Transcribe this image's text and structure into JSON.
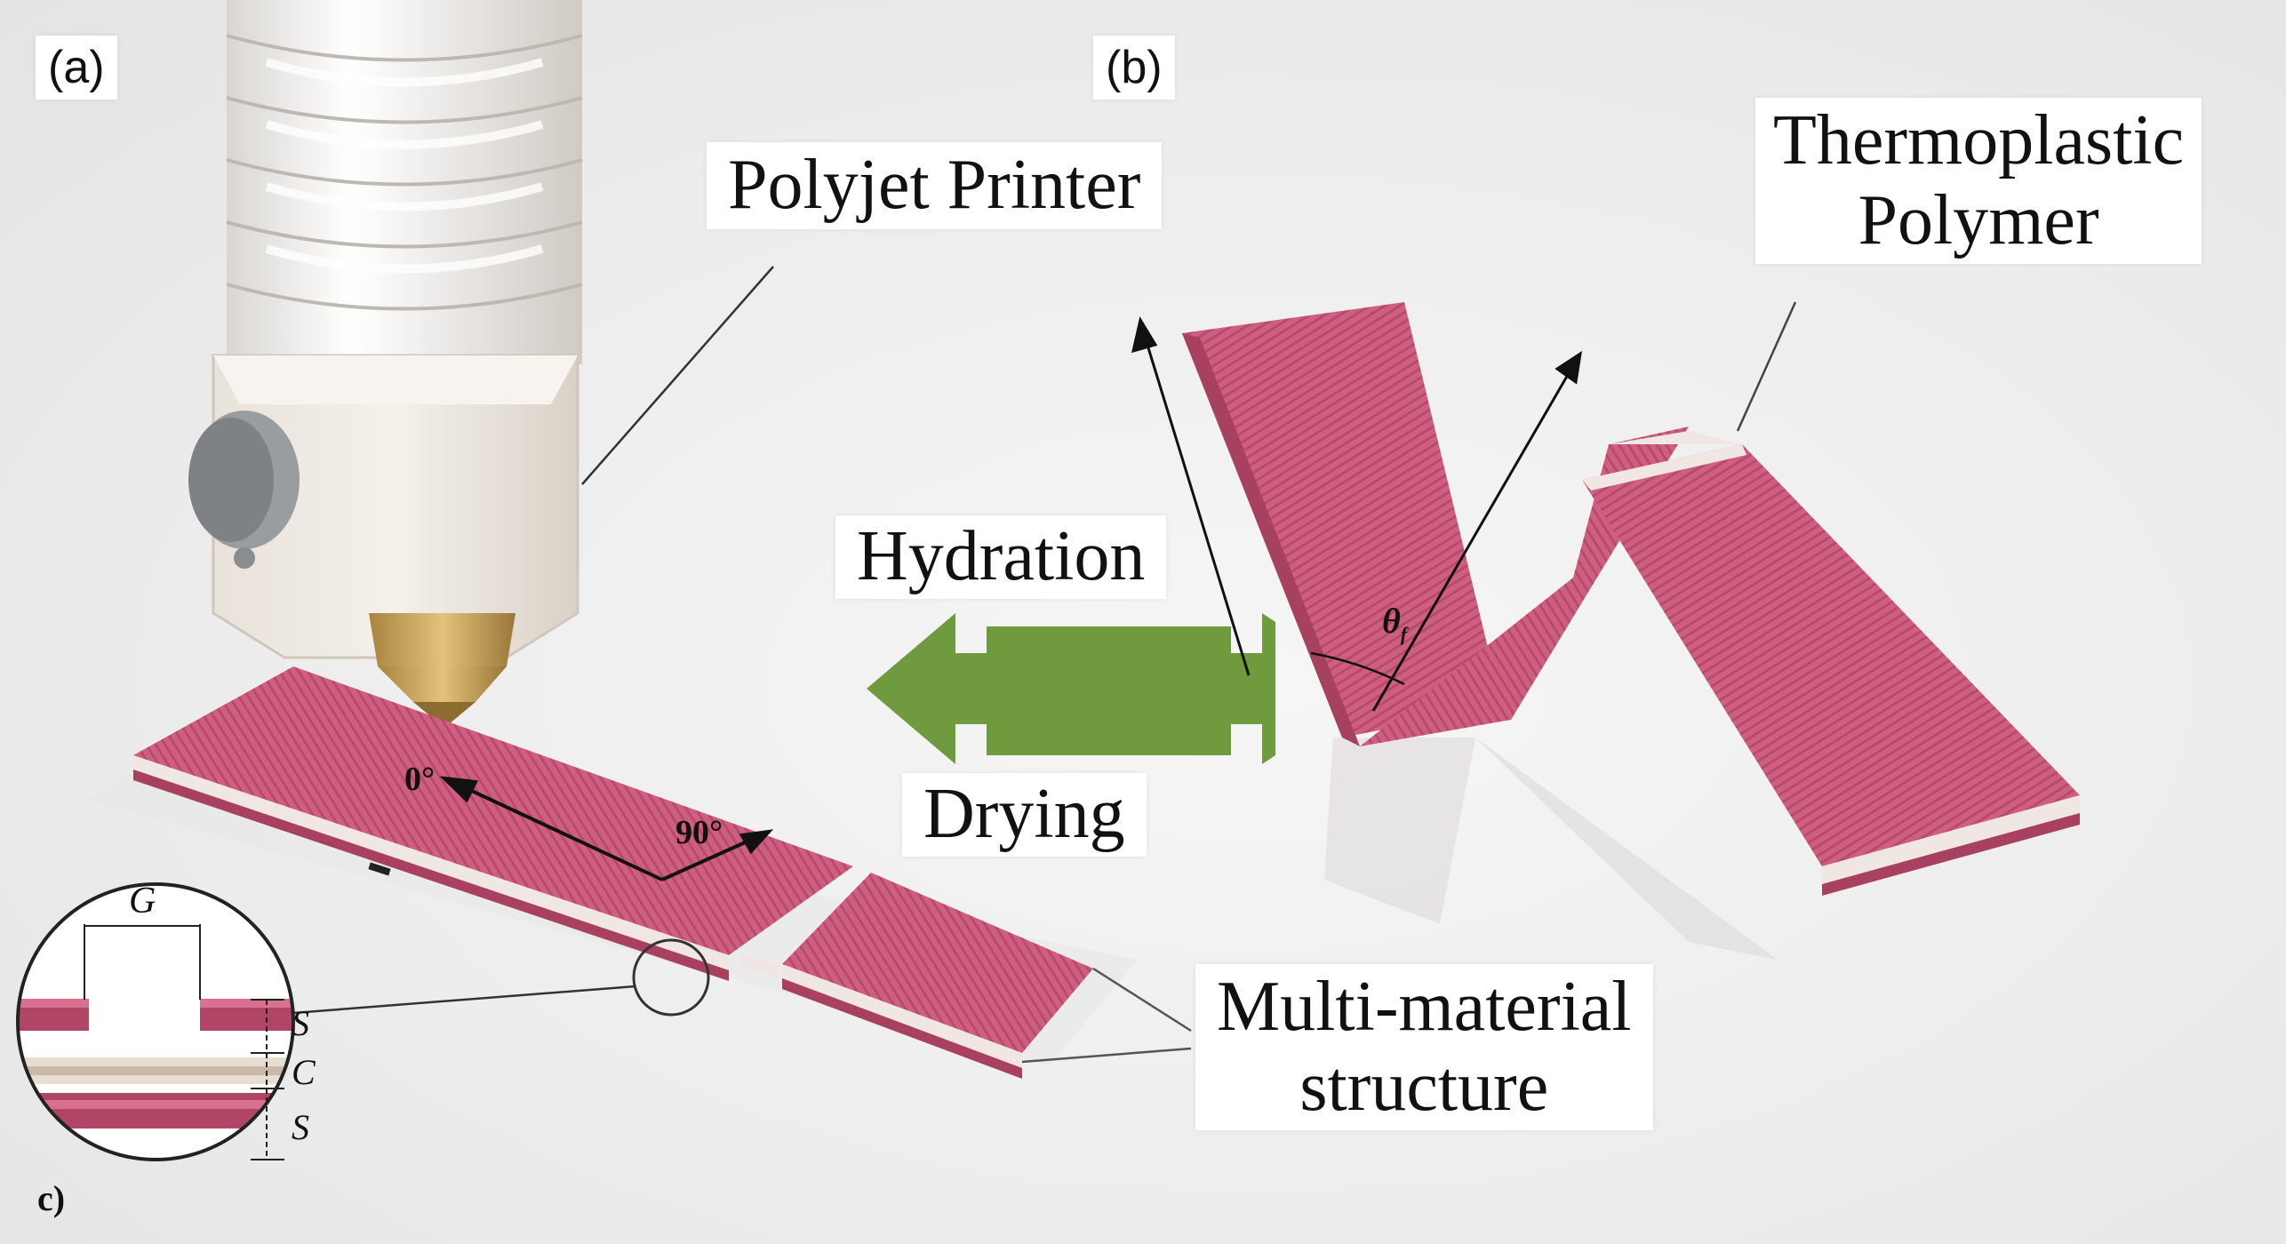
{
  "panels": {
    "a": "(a)",
    "b": "(b)",
    "c": "c)"
  },
  "labels": {
    "printer": "Polyjet Printer",
    "thermo_line1": "Thermoplastic",
    "thermo_line2": "Polymer",
    "hydration": "Hydration",
    "drying": "Drying",
    "multi_line1": "Multi-material",
    "multi_line2": "structure"
  },
  "annotations": {
    "angle_0": "0°",
    "angle_90": "90°",
    "theta": "θ",
    "theta_sub": "f",
    "gap": "G",
    "shell_top": "S",
    "core": "C",
    "shell_bottom": "S"
  },
  "colors": {
    "strip": "#c9587a",
    "strip_dark": "#a8405f",
    "core": "#efe6df",
    "printer_body": "#ece7e0",
    "nozzle": "#c8a35a",
    "arrow_green": "#6f9a3d",
    "knob": "#8a8d8f"
  }
}
